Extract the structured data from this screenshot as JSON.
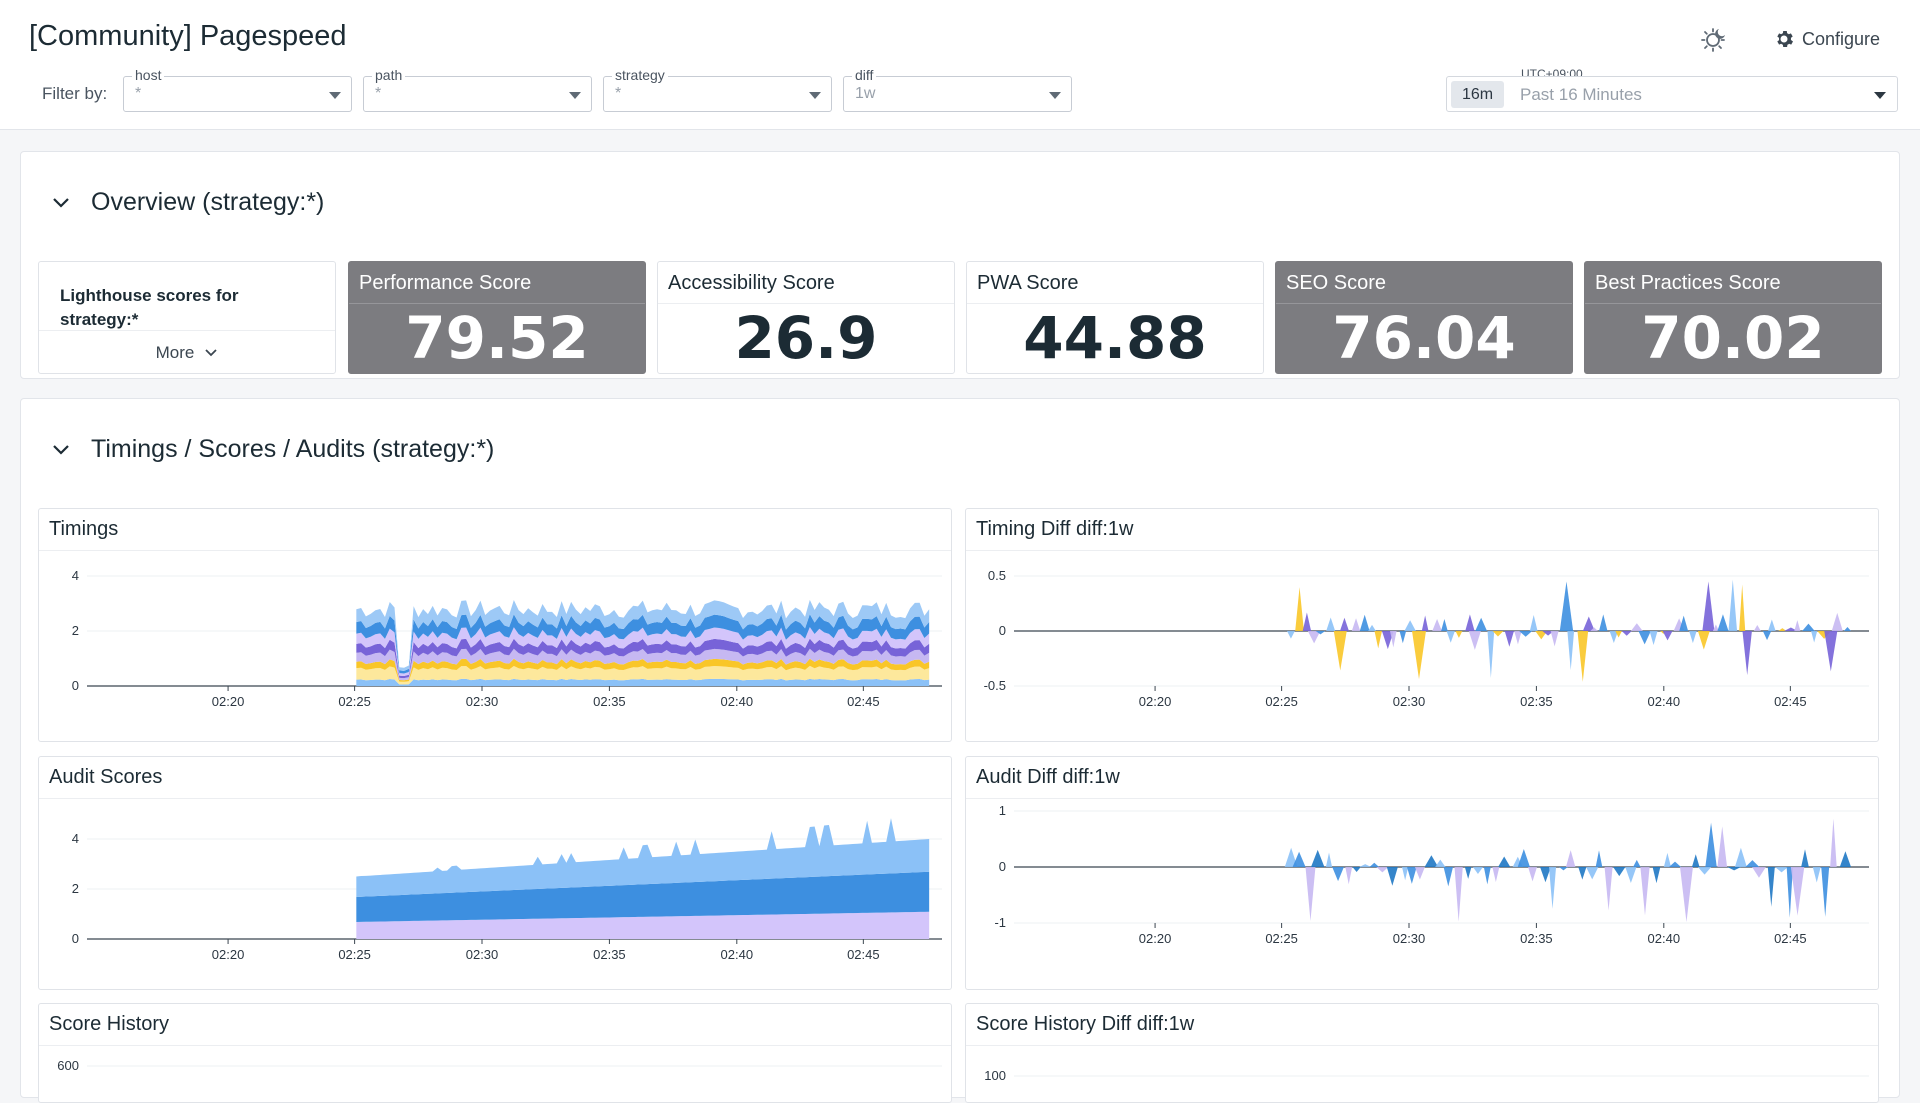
{
  "dashboard": {
    "title": "[Community] Pagespeed"
  },
  "filters": {
    "label": "Filter by:",
    "vars": [
      {
        "name": "host",
        "value": "*"
      },
      {
        "name": "path",
        "value": "*"
      },
      {
        "name": "strategy",
        "value": "*"
      },
      {
        "name": "diff",
        "value": "1w"
      }
    ]
  },
  "header": {
    "configure_label": "Configure",
    "timezone": "UTC+09:00",
    "time_badge": "16m",
    "time_range": "Past 16 Minutes"
  },
  "groups": [
    {
      "title": "Overview (strategy:*)"
    },
    {
      "title": "Timings / Scores / Audits (strategy:*)"
    }
  ],
  "overview": {
    "note": "Lighthouse scores for strategy:*",
    "more_label": "More",
    "scores": [
      {
        "title": "Performance Score",
        "value": "79.52",
        "style": "gray"
      },
      {
        "title": "Accessibility Score",
        "value": "26.9",
        "style": "white"
      },
      {
        "title": "PWA Score",
        "value": "44.88",
        "style": "white"
      },
      {
        "title": "SEO Score",
        "value": "76.04",
        "style": "gray"
      },
      {
        "title": "Best Practices Score",
        "value": "70.02",
        "style": "gray"
      }
    ]
  },
  "chart_data": [
    {
      "id": "timings",
      "type": "area",
      "title": "Timings",
      "x_ticks": [
        "02:20",
        "02:25",
        "02:30",
        "02:35",
        "02:40",
        "02:45"
      ],
      "y_ticks": [
        "0",
        "2",
        "4"
      ],
      "ylim": [
        0,
        4.4
      ],
      "colors": [
        "#8bc1f7",
        "#fde89c",
        "#f9c628",
        "#c6b8f2",
        "#7763d8",
        "#d3c5fb",
        "#3d8fe0",
        "#9dc9f6"
      ],
      "series_values": [
        0.25,
        0.45,
        0.25,
        0.35,
        0.35,
        0.4,
        0.45,
        0.5
      ]
    },
    {
      "id": "timing_diff",
      "type": "area",
      "title": "Timing Diff diff:1w",
      "x_ticks": [
        "02:20",
        "02:25",
        "02:30",
        "02:35",
        "02:40",
        "02:45"
      ],
      "y_ticks": [
        "-0.5",
        "0",
        "0.5"
      ],
      "ylim": [
        -0.6,
        0.6
      ]
    },
    {
      "id": "audit_scores",
      "type": "area",
      "title": "Audit Scores",
      "x_ticks": [
        "02:20",
        "02:25",
        "02:30",
        "02:35",
        "02:40",
        "02:45"
      ],
      "y_ticks": [
        "0",
        "2",
        "4"
      ],
      "ylim": [
        0,
        4.4
      ],
      "colors": [
        "#d3c5fb",
        "#3d8fe0",
        "#8bc1f7"
      ]
    },
    {
      "id": "audit_diff",
      "type": "area",
      "title": "Audit Diff diff:1w",
      "x_ticks": [
        "02:20",
        "02:25",
        "02:30",
        "02:35",
        "02:40",
        "02:45"
      ],
      "y_ticks": [
        "-1",
        "0",
        "1"
      ],
      "ylim": [
        -1.2,
        1.2
      ]
    },
    {
      "id": "score_history",
      "type": "area",
      "title": "Score History",
      "y_ticks": [
        "600"
      ]
    },
    {
      "id": "score_history_diff",
      "type": "area",
      "title": "Score History Diff diff:1w",
      "y_ticks": [
        "100"
      ]
    }
  ]
}
